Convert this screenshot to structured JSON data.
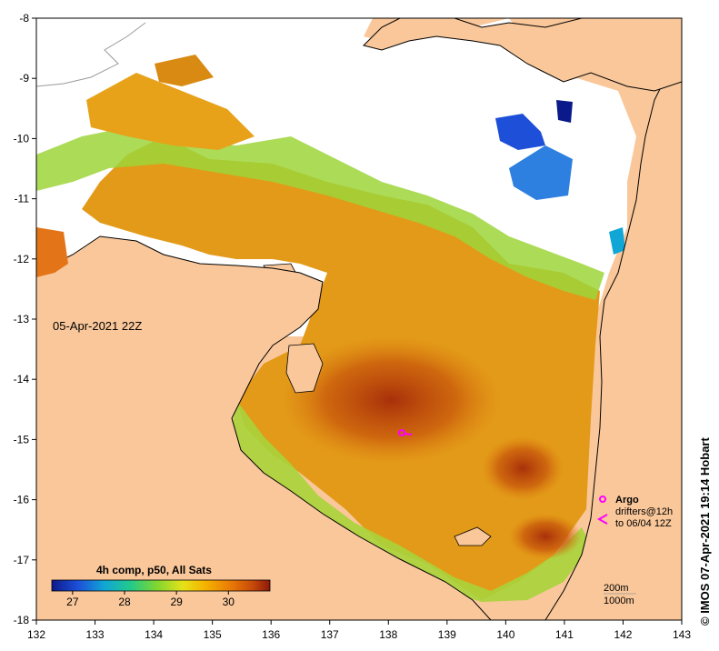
{
  "map": {
    "timestamp_label": "05-Apr-2021 22Z",
    "credit": "© IMOS 07-Apr-2021 19:14 Hobart",
    "lon_ticks": [
      "132",
      "133",
      "134",
      "135",
      "136",
      "137",
      "138",
      "139",
      "140",
      "141",
      "142",
      "143"
    ],
    "lat_ticks": [
      "-8",
      "-9",
      "-10",
      "-11",
      "-12",
      "-13",
      "-14",
      "-15",
      "-16",
      "-17",
      "-18"
    ],
    "lon_range": [
      132,
      143
    ],
    "lat_range": [
      -18,
      -8
    ],
    "colorbar": {
      "title": "4h comp, p50, All Sats",
      "ticks": [
        "27",
        "28",
        "29",
        "30"
      ],
      "range": [
        26.6,
        30.8
      ],
      "colors": [
        "#0b1a8a",
        "#1d4fd8",
        "#10a6d6",
        "#22c98b",
        "#7fd62f",
        "#e6e21a",
        "#f5b400",
        "#e97a06",
        "#c84a0a",
        "#8b1a0a"
      ]
    },
    "legend": {
      "argo_label": "Argo",
      "drifters_label": "drifters@12h",
      "drifters_date": "to 06/04 12Z",
      "argo_color": "#ff00ff",
      "drifter_color": "#ff00ff"
    },
    "depth_contours": [
      "200m",
      "1000m"
    ],
    "colors": {
      "land": "#f9c79a",
      "no_data": "#ffffff",
      "coast": "#000000",
      "contour": "#9a9a9a"
    }
  }
}
